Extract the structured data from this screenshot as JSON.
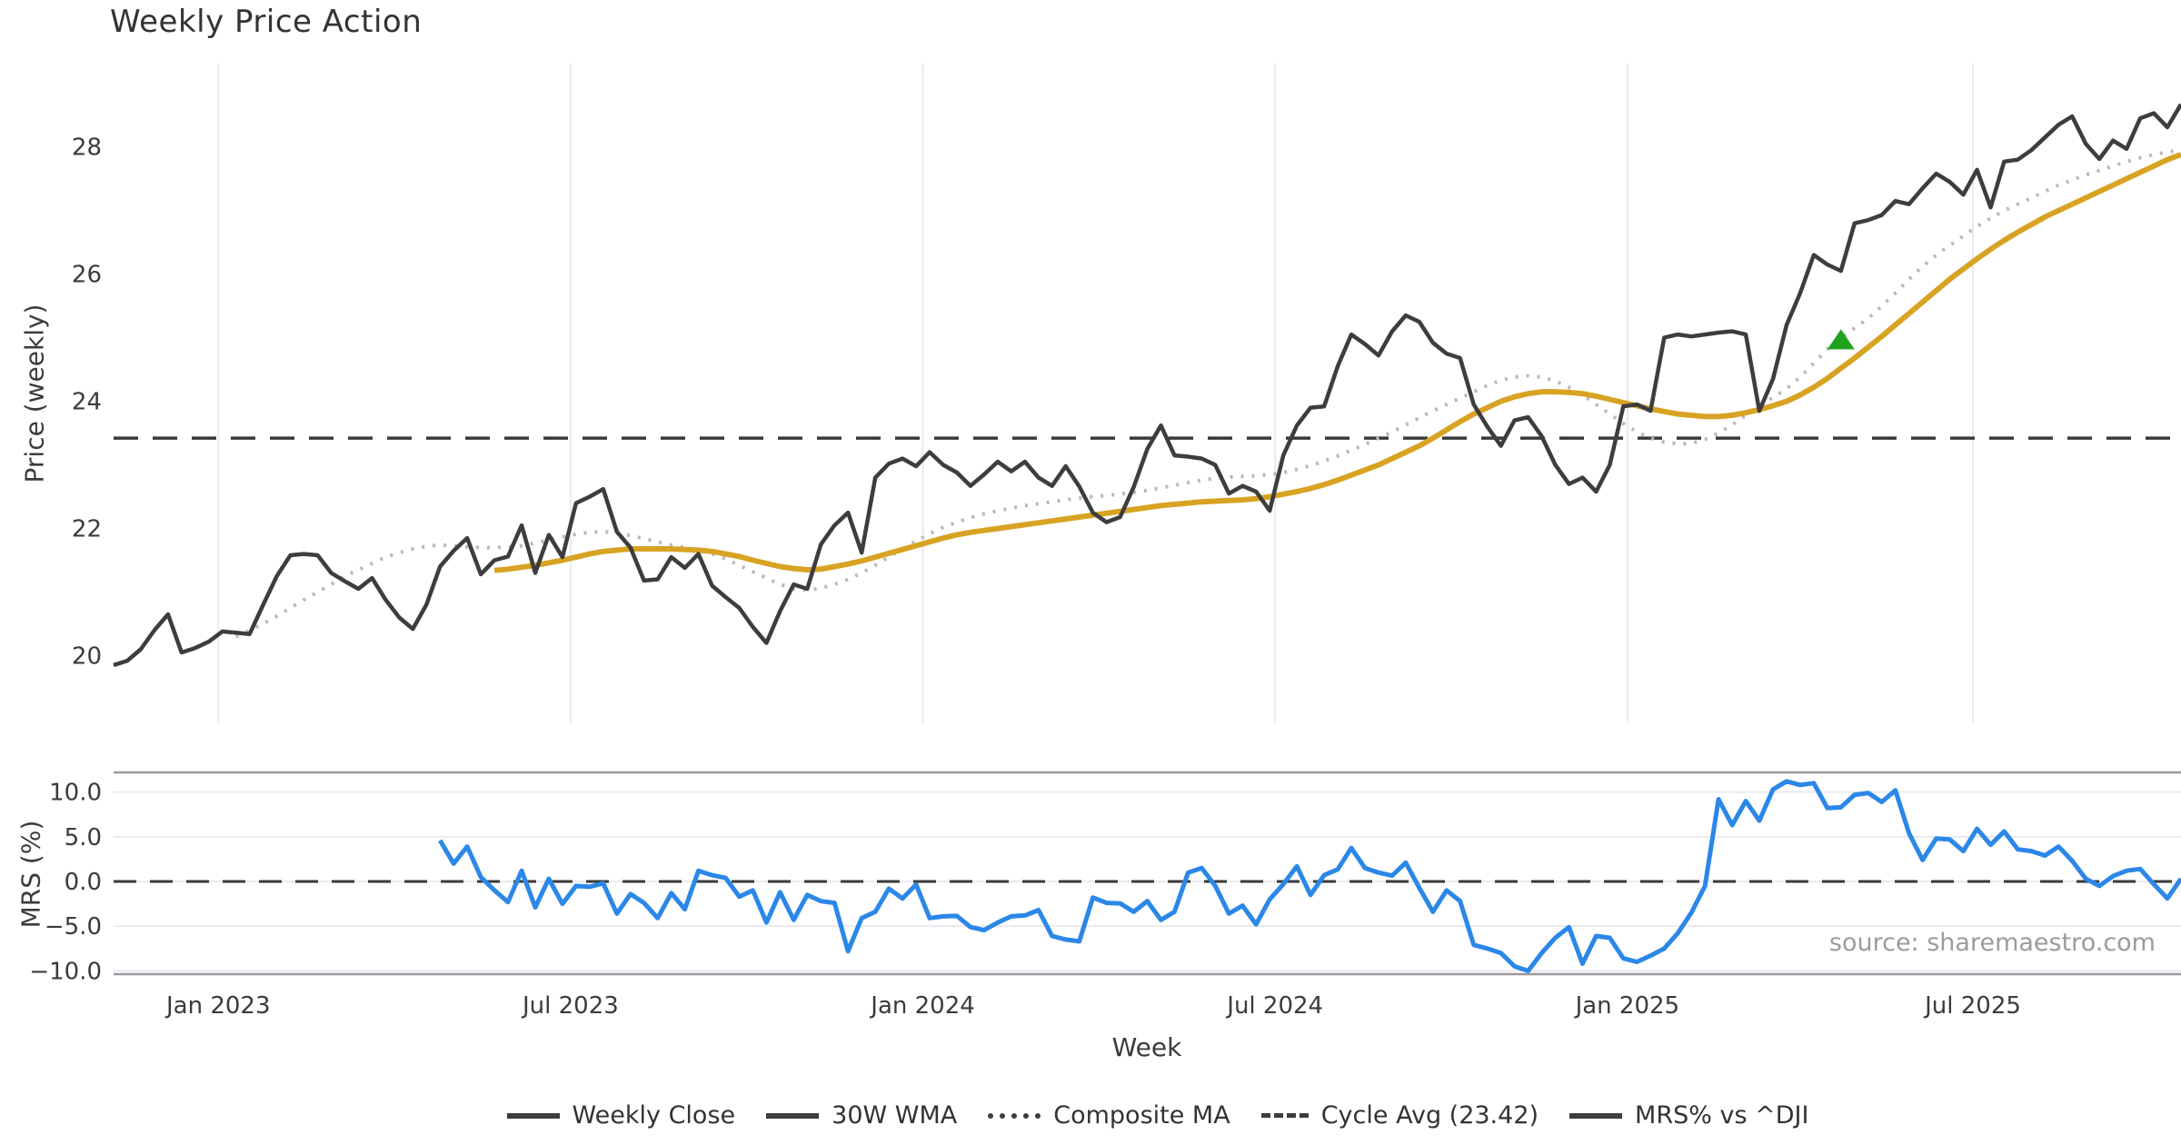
{
  "figure": {
    "title": "Weekly Price Action",
    "source_note": "source: sharemaestro.com"
  },
  "legend": {
    "items": [
      {
        "label": "Weekly Close",
        "color": "#3d3d3d",
        "style": "solid"
      },
      {
        "label": "30W WMA",
        "color": "#d8a323",
        "style": "solid"
      },
      {
        "label": "Composite MA",
        "color": "#b9b9b9",
        "style": "dotted"
      },
      {
        "label": "Cycle Avg (23.42)",
        "color": "#3a3a3a",
        "style": "dashed"
      },
      {
        "label": "MRS% vs ^DJI",
        "color": "#2b87e8",
        "style": "solid"
      }
    ]
  },
  "chart_data": [
    {
      "type": "line",
      "panel": "price",
      "title": "Weekly Price Action",
      "ylabel": "Price (weekly)",
      "ylim": [
        18.95,
        29.31
      ],
      "y_ticks": [
        20,
        22,
        24,
        26,
        28
      ],
      "x_tick_labels": [
        "Jan 2023",
        "Jul 2023",
        "Jan 2024",
        "Jul 2024",
        "Jan 2025",
        "Jul 2025"
      ],
      "x_tick_weeks": [
        7.7,
        33.6,
        59.5,
        85.4,
        111.3,
        136.7
      ],
      "n_weeks": 153,
      "grid": "vertical-only",
      "cycle_avg": 23.42,
      "signal_marker": {
        "week": 127,
        "value": 24.96,
        "shape": "triangle-up",
        "color": "#1fa31f"
      },
      "series": [
        {
          "name": "Composite MA",
          "color": "#b9b9b9",
          "style": "dotted",
          "width": 4,
          "values": [
            null,
            null,
            null,
            null,
            null,
            null,
            null,
            null,
            null,
            20.3,
            20.4,
            20.5,
            20.62,
            20.75,
            20.88,
            21.0,
            21.12,
            21.25,
            21.35,
            21.45,
            21.55,
            21.62,
            21.68,
            21.72,
            21.74,
            21.73,
            21.71,
            21.7,
            21.7,
            21.71,
            21.73,
            21.77,
            21.82,
            21.87,
            21.91,
            21.94,
            21.95,
            21.93,
            21.89,
            21.84,
            21.79,
            21.74,
            21.7,
            21.66,
            21.6,
            21.52,
            21.42,
            21.32,
            21.22,
            21.12,
            21.05,
            21.03,
            21.06,
            21.12,
            21.2,
            21.3,
            21.42,
            21.55,
            21.68,
            21.8,
            21.92,
            22.02,
            22.1,
            22.17,
            22.23,
            22.28,
            22.32,
            22.36,
            22.39,
            22.42,
            22.45,
            22.48,
            22.5,
            22.52,
            22.54,
            22.57,
            22.6,
            22.64,
            22.68,
            22.72,
            22.76,
            22.79,
            22.81,
            22.82,
            22.83,
            22.85,
            22.88,
            22.93,
            22.99,
            23.06,
            23.14,
            23.23,
            23.32,
            23.42,
            23.52,
            23.63,
            23.74,
            23.85,
            23.95,
            24.05,
            24.15,
            24.25,
            24.33,
            24.38,
            24.4,
            24.38,
            24.32,
            24.22,
            24.1,
            23.95,
            23.8,
            23.65,
            23.52,
            23.42,
            23.36,
            23.33,
            23.34,
            23.4,
            23.5,
            23.63,
            23.78,
            23.93,
            24.06,
            24.2,
            24.38,
            24.6,
            24.82,
            25.0,
            25.15,
            25.3,
            25.5,
            25.7,
            25.92,
            26.12,
            26.3,
            26.45,
            26.6,
            26.75,
            26.88,
            27.0,
            27.1,
            27.2,
            27.3,
            27.4,
            27.48,
            27.56,
            27.63,
            27.7,
            27.77,
            27.83,
            27.88,
            27.92,
            27.95
          ]
        },
        {
          "name": "30W WMA",
          "color": "#d8a323",
          "style": "solid",
          "width": 6,
          "values": [
            null,
            null,
            null,
            null,
            null,
            null,
            null,
            null,
            null,
            null,
            null,
            null,
            null,
            null,
            null,
            null,
            null,
            null,
            null,
            null,
            null,
            null,
            null,
            null,
            null,
            null,
            null,
            null,
            21.34,
            21.36,
            21.39,
            21.42,
            21.46,
            21.5,
            21.55,
            21.6,
            21.64,
            21.66,
            21.68,
            21.68,
            21.68,
            21.68,
            21.67,
            21.66,
            21.64,
            21.6,
            21.56,
            21.5,
            21.45,
            21.4,
            21.37,
            21.35,
            21.36,
            21.4,
            21.44,
            21.49,
            21.55,
            21.61,
            21.67,
            21.73,
            21.79,
            21.85,
            21.9,
            21.94,
            21.97,
            22.0,
            22.03,
            22.06,
            22.09,
            22.12,
            22.15,
            22.18,
            22.21,
            22.24,
            22.27,
            22.3,
            22.33,
            22.36,
            22.38,
            22.4,
            22.42,
            22.43,
            22.44,
            22.45,
            22.47,
            22.5,
            22.54,
            22.58,
            22.63,
            22.69,
            22.76,
            22.84,
            22.92,
            23.0,
            23.1,
            23.2,
            23.3,
            23.42,
            23.55,
            23.68,
            23.8,
            23.9,
            24.0,
            24.07,
            24.12,
            24.15,
            24.15,
            24.14,
            24.12,
            24.08,
            24.03,
            23.98,
            23.93,
            23.88,
            23.84,
            23.8,
            23.78,
            23.76,
            23.76,
            23.78,
            23.82,
            23.87,
            23.93,
            24.0,
            24.1,
            24.22,
            24.36,
            24.52,
            24.68,
            24.85,
            25.02,
            25.2,
            25.38,
            25.56,
            25.74,
            25.92,
            26.08,
            26.24,
            26.39,
            26.53,
            26.66,
            26.78,
            26.9,
            27.0,
            27.1,
            27.2,
            27.3,
            27.4,
            27.5,
            27.6,
            27.7,
            27.8,
            27.88
          ]
        },
        {
          "name": "Weekly Close",
          "color": "#3d3d3d",
          "style": "solid",
          "width": 4.5,
          "values": [
            19.85,
            19.92,
            20.1,
            20.4,
            20.65,
            20.05,
            20.12,
            20.22,
            20.38,
            20.36,
            20.34,
            20.8,
            21.25,
            21.58,
            21.6,
            21.58,
            21.3,
            21.17,
            21.05,
            21.22,
            20.88,
            20.6,
            20.42,
            20.8,
            21.4,
            21.65,
            21.85,
            21.28,
            21.5,
            21.56,
            22.05,
            21.3,
            21.9,
            21.55,
            22.4,
            22.5,
            22.62,
            21.95,
            21.7,
            21.18,
            21.2,
            21.55,
            21.38,
            21.6,
            21.1,
            20.92,
            20.75,
            20.45,
            20.2,
            20.7,
            21.12,
            21.05,
            21.75,
            22.05,
            22.25,
            21.62,
            22.8,
            23.02,
            23.1,
            22.98,
            23.2,
            23.0,
            22.88,
            22.67,
            22.85,
            23.05,
            22.9,
            23.05,
            22.8,
            22.67,
            22.98,
            22.66,
            22.25,
            22.1,
            22.18,
            22.65,
            23.25,
            23.62,
            23.15,
            23.13,
            23.1,
            23.0,
            22.55,
            22.67,
            22.58,
            22.28,
            23.15,
            23.62,
            23.9,
            23.92,
            24.55,
            25.05,
            24.9,
            24.72,
            25.1,
            25.35,
            25.25,
            24.92,
            24.75,
            24.68,
            23.95,
            23.6,
            23.3,
            23.7,
            23.75,
            23.45,
            23.0,
            22.7,
            22.8,
            22.58,
            23.0,
            23.92,
            23.95,
            23.85,
            25.0,
            25.05,
            25.02,
            25.05,
            25.08,
            25.1,
            25.05,
            23.85,
            24.35,
            25.2,
            25.7,
            26.3,
            26.15,
            26.05,
            26.8,
            26.85,
            26.93,
            27.15,
            27.1,
            27.35,
            27.58,
            27.45,
            27.25,
            27.64,
            27.05,
            27.77,
            27.8,
            27.95,
            28.15,
            28.35,
            28.48,
            28.05,
            27.81,
            28.1,
            27.97,
            28.45,
            28.53,
            28.31,
            28.67
          ]
        }
      ]
    },
    {
      "type": "line",
      "panel": "mrs",
      "ylabel": "MRS (%)",
      "xlabel": "Week",
      "ylim": [
        -10.37,
        12.2
      ],
      "y_ticks": [
        10,
        5,
        0,
        -5,
        -10
      ],
      "y_tick_labels": [
        "10.0",
        "5.0",
        "0.0",
        "−5.0",
        "−10.0"
      ],
      "zero_line_dashed": true,
      "grid": "horizontal-only",
      "series": [
        {
          "name": "MRS% vs ^DJI",
          "color": "#2b87e8",
          "style": "solid",
          "width": 5,
          "values": [
            null,
            null,
            null,
            null,
            null,
            null,
            null,
            null,
            null,
            null,
            null,
            null,
            null,
            null,
            null,
            null,
            null,
            null,
            null,
            null,
            null,
            null,
            null,
            null,
            4.6,
            2.0,
            3.9,
            0.5,
            -1.0,
            -2.3,
            1.2,
            -2.9,
            0.3,
            -2.5,
            -0.5,
            -0.6,
            -0.2,
            -3.6,
            -1.4,
            -2.4,
            -4.1,
            -1.3,
            -3.1,
            1.2,
            0.7,
            0.4,
            -1.7,
            -1.0,
            -4.6,
            -1.2,
            -4.3,
            -1.5,
            -2.2,
            -2.4,
            -7.8,
            -4.1,
            -3.4,
            -0.8,
            -1.9,
            -0.35,
            -4.1,
            -3.9,
            -3.85,
            -5.1,
            -5.45,
            -4.6,
            -3.9,
            -3.8,
            -3.2,
            -6.1,
            -6.5,
            -6.7,
            -1.8,
            -2.4,
            -2.45,
            -3.4,
            -2.2,
            -4.3,
            -3.4,
            1.0,
            1.5,
            -0.5,
            -3.6,
            -2.7,
            -4.8,
            -2.0,
            -0.3,
            1.7,
            -1.5,
            0.7,
            1.35,
            3.75,
            1.5,
            1.0,
            0.65,
            2.1,
            -0.7,
            -3.4,
            -1.0,
            -2.2,
            -7.1,
            -7.5,
            -8.0,
            -9.5,
            -10.0,
            -8.0,
            -6.3,
            -5.1,
            -9.2,
            -6.1,
            -6.3,
            -8.6,
            -9.0,
            -8.3,
            -7.5,
            -5.8,
            -3.5,
            -0.5,
            9.2,
            6.3,
            9.0,
            6.8,
            10.3,
            11.2,
            10.8,
            11.0,
            8.2,
            8.3,
            9.7,
            9.9,
            8.9,
            10.2,
            5.4,
            2.4,
            4.8,
            4.7,
            3.4,
            5.9,
            4.1,
            5.6,
            3.6,
            3.4,
            2.9,
            3.9,
            2.3,
            0.3,
            -0.5,
            0.6,
            1.2,
            1.4,
            -0.3,
            -1.9,
            0.3
          ]
        }
      ]
    }
  ]
}
